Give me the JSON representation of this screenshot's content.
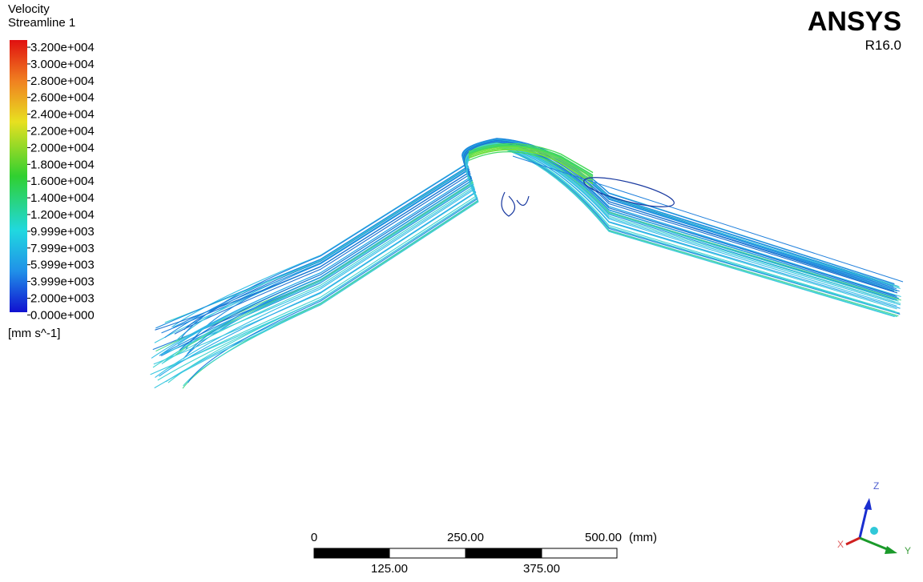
{
  "legend": {
    "title": "Velocity",
    "subtitle": "Streamline 1",
    "labels": [
      "3.200e+004",
      "3.000e+004",
      "2.800e+004",
      "2.600e+004",
      "2.400e+004",
      "2.200e+004",
      "2.000e+004",
      "1.800e+004",
      "1.600e+004",
      "1.400e+004",
      "1.200e+004",
      "9.999e+003",
      "7.999e+003",
      "5.999e+003",
      "3.999e+003",
      "2.000e+003",
      "0.000e+000"
    ],
    "unit": "[mm s^-1]"
  },
  "logo": {
    "brand": "ANSYS",
    "version": "R16.0"
  },
  "scale_bar": {
    "top_labels": [
      "0",
      "250.00",
      "500.00"
    ],
    "unit": "(mm)",
    "bottom_labels": [
      "125.00",
      "375.00"
    ]
  },
  "triad": {
    "z": "Z",
    "y": "Y",
    "x": "X"
  }
}
